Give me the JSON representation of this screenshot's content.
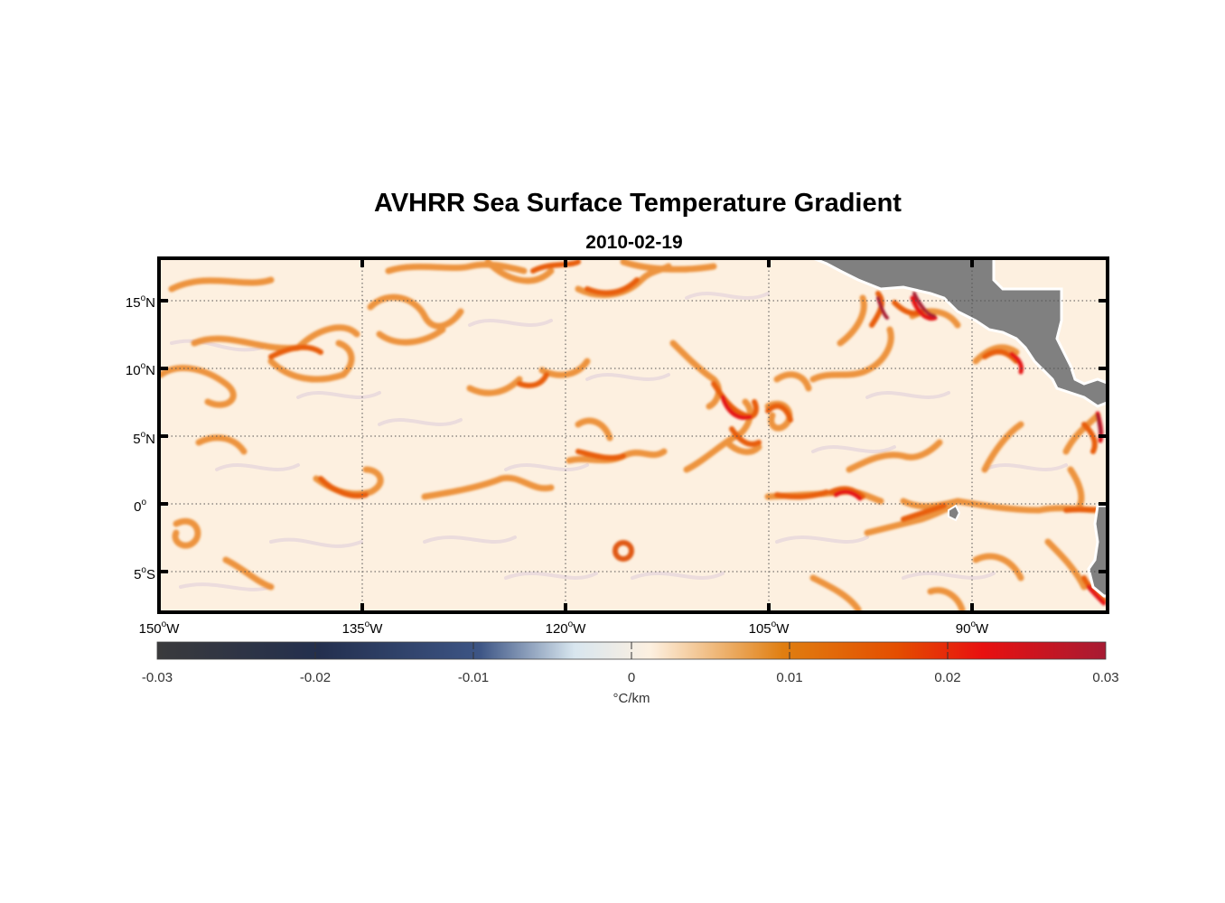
{
  "title": "AVHRR Sea Surface Temperature Gradient",
  "subtitle": "2010-02-19",
  "map": {
    "lon_range": [
      -150,
      -80
    ],
    "lat_range": [
      -8,
      18
    ],
    "lat_ticks": [
      {
        "value": 15,
        "num": "15",
        "deg": "o",
        "hemi": "N"
      },
      {
        "value": 10,
        "num": "10",
        "deg": "o",
        "hemi": "N"
      },
      {
        "value": 5,
        "num": "5",
        "deg": "o",
        "hemi": "N"
      },
      {
        "value": 0,
        "num": "0",
        "deg": "o",
        "hemi": ""
      },
      {
        "value": -5,
        "num": "5",
        "deg": "o",
        "hemi": "S"
      }
    ],
    "lon_ticks": [
      {
        "value": -150,
        "num": "150",
        "deg": "o",
        "hemi": "W"
      },
      {
        "value": -135,
        "num": "135",
        "deg": "o",
        "hemi": "W"
      },
      {
        "value": -120,
        "num": "120",
        "deg": "o",
        "hemi": "W"
      },
      {
        "value": -105,
        "num": "105",
        "deg": "o",
        "hemi": "W"
      },
      {
        "value": -90,
        "num": "90",
        "deg": "o",
        "hemi": "W"
      }
    ],
    "grid": "dotted",
    "land_color": "#808080",
    "ocean_base_color": "#fdf0e0"
  },
  "colorbar": {
    "range": [
      -0.03,
      0.03
    ],
    "ticks": [
      "-0.03",
      "-0.02",
      "-0.01",
      "0",
      "0.01",
      "0.02",
      "0.03"
    ],
    "tick_values": [
      -0.03,
      -0.02,
      -0.01,
      0,
      0.01,
      0.02,
      0.03
    ],
    "units": "°C/km",
    "colors": [
      "#3a3a3c",
      "#232f4e",
      "#3d5585",
      "#d8e6ef",
      "#fdf0e0",
      "#e07e10",
      "#e44e00",
      "#e81010",
      "#a71b33"
    ]
  }
}
